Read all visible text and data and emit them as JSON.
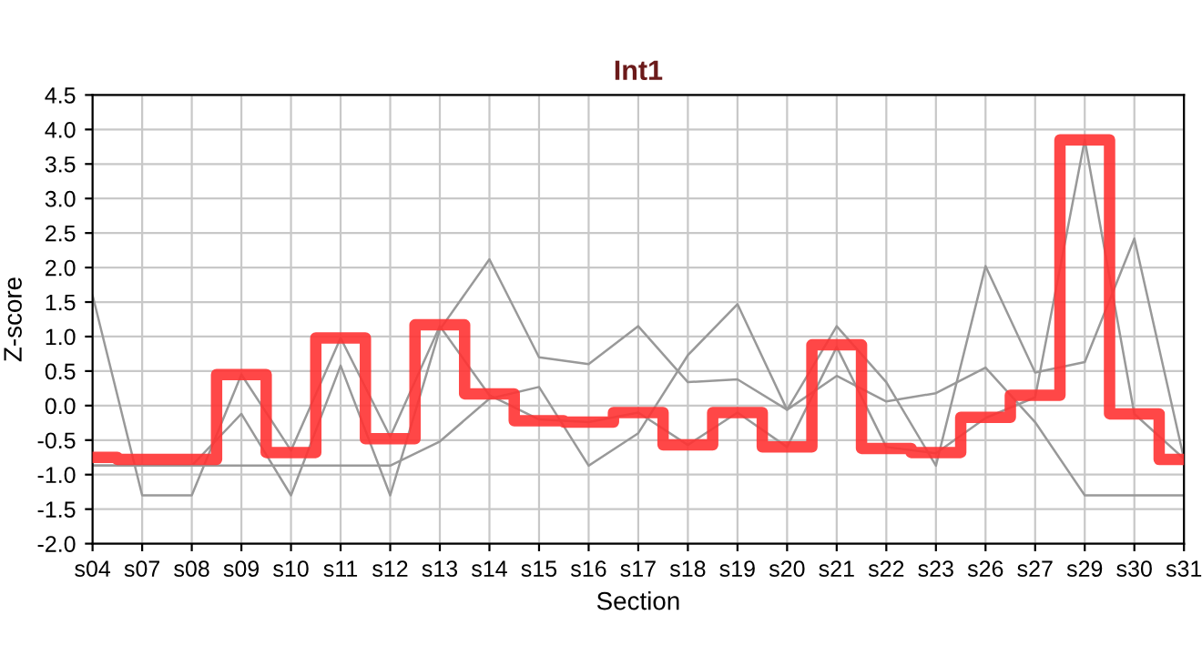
{
  "chart_data": {
    "type": "line",
    "title": "Int1",
    "xlabel": "Section",
    "ylabel": "Z-score",
    "categories": [
      "s04",
      "s07",
      "s08",
      "s09",
      "s10",
      "s11",
      "s12",
      "s13",
      "s14",
      "s15",
      "s16",
      "s17",
      "s18",
      "s19",
      "s20",
      "s21",
      "s22",
      "s23",
      "s26",
      "s27",
      "s29",
      "s30",
      "s31"
    ],
    "series": [
      {
        "color": "#999999",
        "values": [
          1.6,
          -1.3,
          -1.3,
          0.45,
          -0.65,
          0.98,
          -0.45,
          1.15,
          0.15,
          -0.2,
          -0.24,
          -0.1,
          -0.57,
          -0.1,
          -0.6,
          0.85,
          -0.6,
          -0.69,
          -0.18,
          0.12,
          3.85,
          -0.12,
          -0.77
        ]
      },
      {
        "color": "#999999",
        "values": [
          -0.87,
          -0.87,
          -0.87,
          -0.12,
          -1.3,
          0.58,
          -1.3,
          1.1,
          2.12,
          0.7,
          0.6,
          1.15,
          0.34,
          0.38,
          -0.06,
          0.43,
          0.06,
          0.18,
          0.55,
          -0.24,
          -1.3,
          -1.3,
          -1.3
        ]
      },
      {
        "color": "#999999",
        "values": [
          -0.87,
          -0.87,
          -0.87,
          -0.87,
          -0.87,
          -0.87,
          -0.87,
          -0.52,
          0.1,
          0.27,
          -0.87,
          -0.4,
          0.73,
          1.47,
          -0.06,
          1.15,
          0.34,
          -0.87,
          2.02,
          0.48,
          0.63,
          2.42,
          -0.77
        ]
      },
      {
        "type": "step",
        "color": "#ff3333",
        "values": [
          -0.75,
          -0.78,
          -0.78,
          0.45,
          -0.68,
          0.98,
          -0.48,
          1.17,
          0.17,
          -0.22,
          -0.24,
          -0.1,
          -0.57,
          -0.1,
          -0.6,
          0.88,
          -0.62,
          -0.68,
          -0.17,
          0.15,
          3.85,
          -0.12,
          -0.78
        ]
      }
    ],
    "ylim": [
      -2.0,
      4.5
    ],
    "yticks": [
      {
        "value": -2.0,
        "label": "-2.0"
      },
      {
        "value": -1.5,
        "label": "-1.5"
      },
      {
        "value": -1.0,
        "label": "-1.0"
      },
      {
        "value": -0.5,
        "label": "-0.5"
      },
      {
        "value": 0.0,
        "label": "0.0"
      },
      {
        "value": 0.5,
        "label": "0.5"
      },
      {
        "value": 1.0,
        "label": "1.0"
      },
      {
        "value": 1.5,
        "label": "1.5"
      },
      {
        "value": 2.0,
        "label": "2.0"
      },
      {
        "value": 2.5,
        "label": "2.5"
      },
      {
        "value": 3.0,
        "label": "3.0"
      },
      {
        "value": 3.5,
        "label": "3.5"
      },
      {
        "value": 4.0,
        "label": "4.0"
      },
      {
        "value": 4.5,
        "label": "4.5"
      }
    ],
    "grid": true,
    "legend": false,
    "marker": "none"
  }
}
